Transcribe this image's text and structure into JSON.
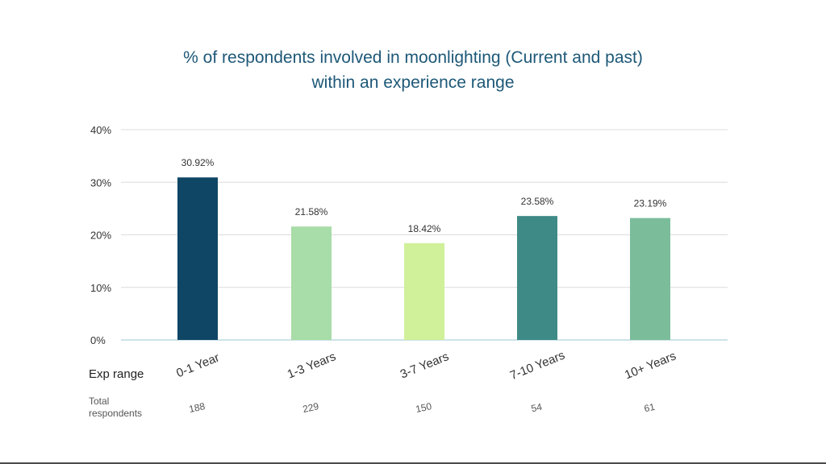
{
  "chart_data": {
    "type": "bar",
    "title_lines": [
      "% of respondents involved in moonlighting (Current and past)",
      "within an experience range"
    ],
    "categories": [
      "0-1 Year",
      "1-3 Years",
      "3-7 Years",
      "7-10 Years",
      "10+ Years"
    ],
    "values": [
      30.92,
      21.58,
      18.42,
      23.58,
      23.19
    ],
    "value_labels": [
      "30.92%",
      "21.58%",
      "18.42%",
      "23.58%",
      "23.19%"
    ],
    "bar_colors": [
      "#0f4666",
      "#a8dca8",
      "#d0f09a",
      "#3e8a86",
      "#7bbd9b"
    ],
    "y_ticks": [
      "0%",
      "10%",
      "20%",
      "30%",
      "40%"
    ],
    "ylim": [
      0,
      40
    ],
    "grid": true,
    "xlabel": "Exp range",
    "total_respondents_label": [
      "Total",
      "respondents"
    ],
    "total_respondents": [
      "188",
      "229",
      "150",
      "54",
      "61"
    ]
  }
}
